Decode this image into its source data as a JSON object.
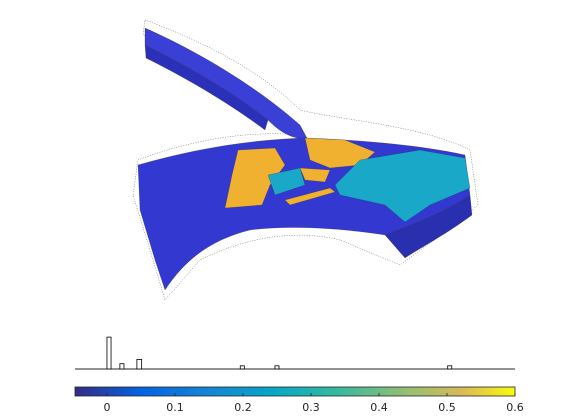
{
  "chart_data": {
    "type": "histogram",
    "bins": [
      0,
      0.006,
      0.019,
      0.025,
      0.044,
      0.051,
      0.196,
      0.202,
      0.247,
      0.253,
      0.501,
      0.507
    ],
    "counts": [
      30,
      0,
      5,
      0,
      9,
      0,
      3,
      0,
      3,
      0,
      3
    ],
    "bar_color": "#ffffff",
    "edge_color": "#000000",
    "xlim": [
      -0.047,
      0.6
    ],
    "ylim": [
      0,
      32
    ],
    "colorbar": {
      "colormap": "parula",
      "xticks": [
        0,
        0.1,
        0.2,
        0.3,
        0.4,
        0.5,
        0.6
      ]
    }
  }
}
